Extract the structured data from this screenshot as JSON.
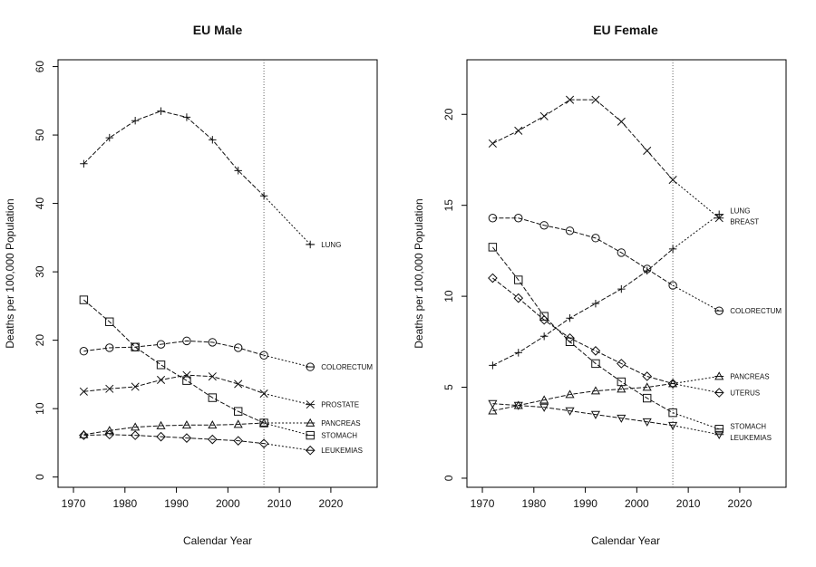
{
  "chart_data": [
    {
      "type": "line",
      "title": "EU Male",
      "xlabel": "Calendar Year",
      "ylabel": "Deaths per 100,000 Population",
      "xlim": [
        1967,
        2029
      ],
      "ylim": [
        -1.5,
        61
      ],
      "xticks": [
        1970,
        1980,
        1990,
        2000,
        2010,
        2020
      ],
      "yticks": [
        0,
        10,
        20,
        30,
        40,
        50,
        60
      ],
      "vline": 2007,
      "x": [
        1972,
        1977,
        1982,
        1987,
        1992,
        1997,
        2002,
        2007
      ],
      "prediction_year": 2016,
      "series": [
        {
          "name": "LUNG",
          "marker": "plus",
          "values": [
            45.8,
            49.6,
            52.1,
            53.5,
            52.6,
            49.3,
            44.8,
            41.1
          ],
          "prediction": 34.0
        },
        {
          "name": "COLORECTUM",
          "marker": "circle",
          "values": [
            18.4,
            18.9,
            19.0,
            19.4,
            19.9,
            19.7,
            18.9,
            17.8
          ],
          "prediction": 16.1
        },
        {
          "name": "PROSTATE",
          "marker": "x",
          "values": [
            12.5,
            12.9,
            13.2,
            14.2,
            14.9,
            14.7,
            13.6,
            12.2
          ],
          "prediction": 10.6
        },
        {
          "name": "PANCREAS",
          "marker": "triangle",
          "values": [
            6.2,
            6.8,
            7.3,
            7.5,
            7.6,
            7.6,
            7.7,
            7.9
          ],
          "prediction": 7.9
        },
        {
          "name": "STOMACH",
          "marker": "square",
          "values": [
            25.9,
            22.7,
            19.0,
            16.4,
            14.1,
            11.6,
            9.6,
            7.9
          ],
          "prediction": 6.1
        },
        {
          "name": "LEUKEMIAS",
          "marker": "diamond",
          "values": [
            6.1,
            6.2,
            6.1,
            5.9,
            5.7,
            5.5,
            5.3,
            4.9
          ],
          "prediction": 3.9
        }
      ]
    },
    {
      "type": "line",
      "title": "EU Female",
      "xlabel": "Calendar Year",
      "ylabel": "Deaths per 100,000 Population",
      "xlim": [
        1967,
        2029
      ],
      "ylim": [
        -0.5,
        23
      ],
      "xticks": [
        1970,
        1980,
        1990,
        2000,
        2010,
        2020
      ],
      "yticks": [
        0,
        5,
        10,
        15,
        20
      ],
      "vline": 2007,
      "x": [
        1972,
        1977,
        1982,
        1987,
        1992,
        1997,
        2002,
        2007
      ],
      "prediction_year": 2016,
      "series": [
        {
          "name": "LUNG",
          "marker": "plus",
          "values": [
            6.2,
            6.9,
            7.8,
            8.8,
            9.6,
            10.4,
            11.4,
            12.6
          ],
          "prediction": 14.5
        },
        {
          "name": "BREAST",
          "marker": "x",
          "values": [
            18.4,
            19.1,
            19.9,
            20.8,
            20.8,
            19.6,
            18.0,
            16.4
          ],
          "prediction": 14.3
        },
        {
          "name": "COLORECTUM",
          "marker": "circle",
          "values": [
            14.3,
            14.3,
            13.9,
            13.6,
            13.2,
            12.4,
            11.5,
            10.6
          ],
          "prediction": 9.2
        },
        {
          "name": "PANCREAS",
          "marker": "triangle",
          "values": [
            3.7,
            4.0,
            4.3,
            4.6,
            4.8,
            4.9,
            5.0,
            5.2
          ],
          "prediction": 5.6
        },
        {
          "name": "UTERUS",
          "marker": "diamond",
          "values": [
            11.0,
            9.9,
            8.7,
            7.7,
            7.0,
            6.3,
            5.6,
            5.2
          ],
          "prediction": 4.7
        },
        {
          "name": "STOMACH",
          "marker": "square",
          "values": [
            12.7,
            10.9,
            8.9,
            7.5,
            6.3,
            5.3,
            4.4,
            3.6
          ],
          "prediction": 2.7
        },
        {
          "name": "LEUKEMIAS",
          "marker": "triangle-down",
          "values": [
            4.1,
            4.0,
            3.9,
            3.7,
            3.5,
            3.3,
            3.1,
            2.9
          ],
          "prediction": 2.4
        }
      ]
    }
  ]
}
